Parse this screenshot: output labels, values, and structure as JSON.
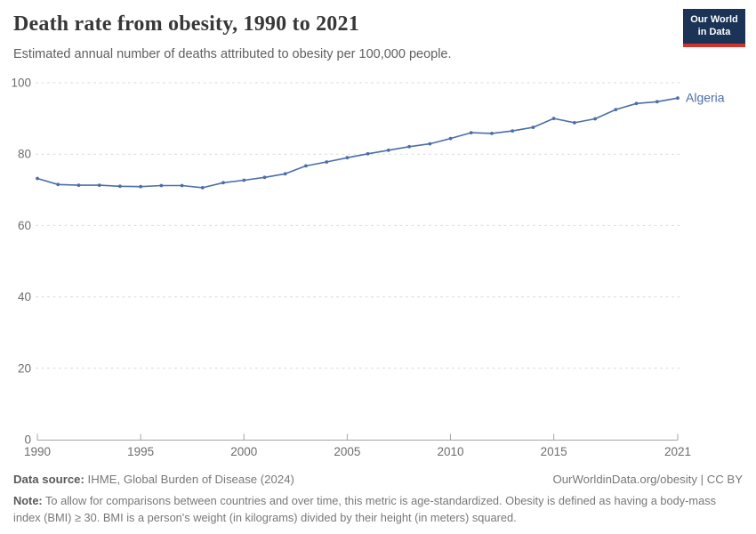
{
  "header": {
    "title": "Death rate from obesity, 1990 to 2021",
    "subtitle": "Estimated annual number of deaths attributed to obesity per 100,000 people.",
    "logo_line1": "Our World",
    "logo_line2": "in Data"
  },
  "chart_data": {
    "type": "line",
    "title": "Death rate from obesity, 1990 to 2021",
    "xlabel": "",
    "ylabel": "",
    "xlim": [
      1990,
      2021
    ],
    "ylim": [
      0,
      100
    ],
    "xticks": [
      1990,
      1995,
      2000,
      2005,
      2010,
      2015,
      2021
    ],
    "yticks": [
      0,
      20,
      40,
      60,
      80,
      100
    ],
    "grid": "horizontal-dashed",
    "legend_position": "end-of-line-label",
    "x": [
      1990,
      1991,
      1992,
      1993,
      1994,
      1995,
      1996,
      1997,
      1998,
      1999,
      2000,
      2001,
      2002,
      2003,
      2004,
      2005,
      2006,
      2007,
      2008,
      2009,
      2010,
      2011,
      2012,
      2013,
      2014,
      2015,
      2016,
      2017,
      2018,
      2019,
      2020,
      2021
    ],
    "series": [
      {
        "name": "Algeria",
        "color": "#4c6da8",
        "values": [
          73.2,
          71.5,
          71.3,
          71.3,
          71.0,
          70.9,
          71.2,
          71.2,
          70.6,
          72.0,
          72.7,
          73.5,
          74.5,
          76.7,
          77.8,
          79.0,
          80.1,
          81.1,
          82.1,
          82.9,
          84.4,
          86.0,
          85.8,
          86.5,
          87.5,
          90.0,
          88.8,
          89.9,
          92.5,
          94.2,
          94.7,
          95.7
        ]
      }
    ]
  },
  "footer": {
    "datasource_label": "Data source:",
    "datasource_value": " IHME, Global Burden of Disease (2024)",
    "attribution": "OurWorldinData.org/obesity | CC BY",
    "note_label": "Note:",
    "note_value": " To allow for comparisons between countries and over time, this metric is age-standardized. Obesity is defined as having a body-mass index (BMI) ≥ 30. BMI is a person's weight (in kilograms) divided by their height (in meters) squared."
  },
  "colors": {
    "line": "#4c6da8",
    "gridline": "#dcdcdc",
    "axis": "#a5a5a5",
    "tick_label": "#6d6d6d",
    "title": "#373737",
    "subtitle": "#5f5f5f",
    "footer_text": "#787878",
    "logo_navy": "#1a3356",
    "logo_red": "#d0342c"
  }
}
